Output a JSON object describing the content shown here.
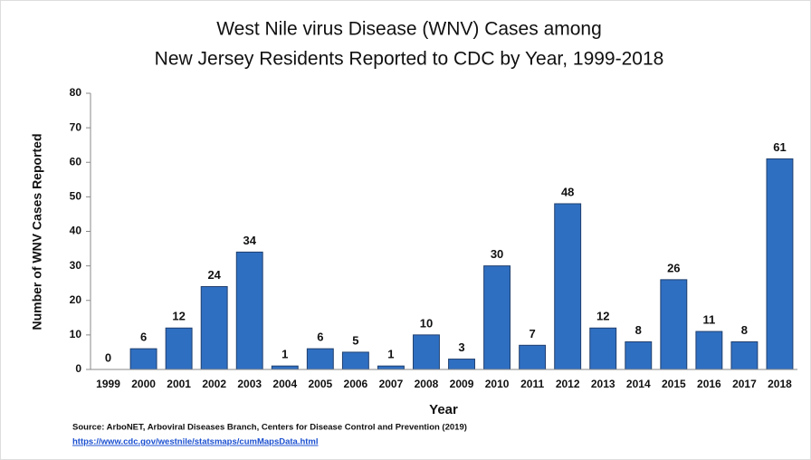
{
  "chart_data": {
    "type": "bar",
    "title": [
      "West Nile virus Disease (WNV) Cases among",
      "New Jersey Residents Reported to CDC by Year, 1999-2018"
    ],
    "x_label": "Year",
    "y_label": "Number of WNV Cases Reported",
    "categories": [
      "1999",
      "2000",
      "2001",
      "2002",
      "2003",
      "2004",
      "2005",
      "2006",
      "2007",
      "2008",
      "2009",
      "2010",
      "2011",
      "2012",
      "2013",
      "2014",
      "2015",
      "2016",
      "2017",
      "2018"
    ],
    "values": [
      0,
      6,
      12,
      24,
      34,
      1,
      6,
      5,
      1,
      10,
      3,
      30,
      7,
      48,
      12,
      8,
      26,
      11,
      8,
      61
    ],
    "color": "#2f6fc2",
    "ylim": [
      0,
      80
    ],
    "yticks": [
      0,
      10,
      20,
      30,
      40,
      50,
      60,
      70,
      80
    ],
    "source": "Source: ArboNET, Arboviral Diseases Branch, Centers for Disease Control and Prevention (2019)",
    "source_url": "https://www.cdc.gov/westnile/statsmaps/cumMapsData.html"
  }
}
